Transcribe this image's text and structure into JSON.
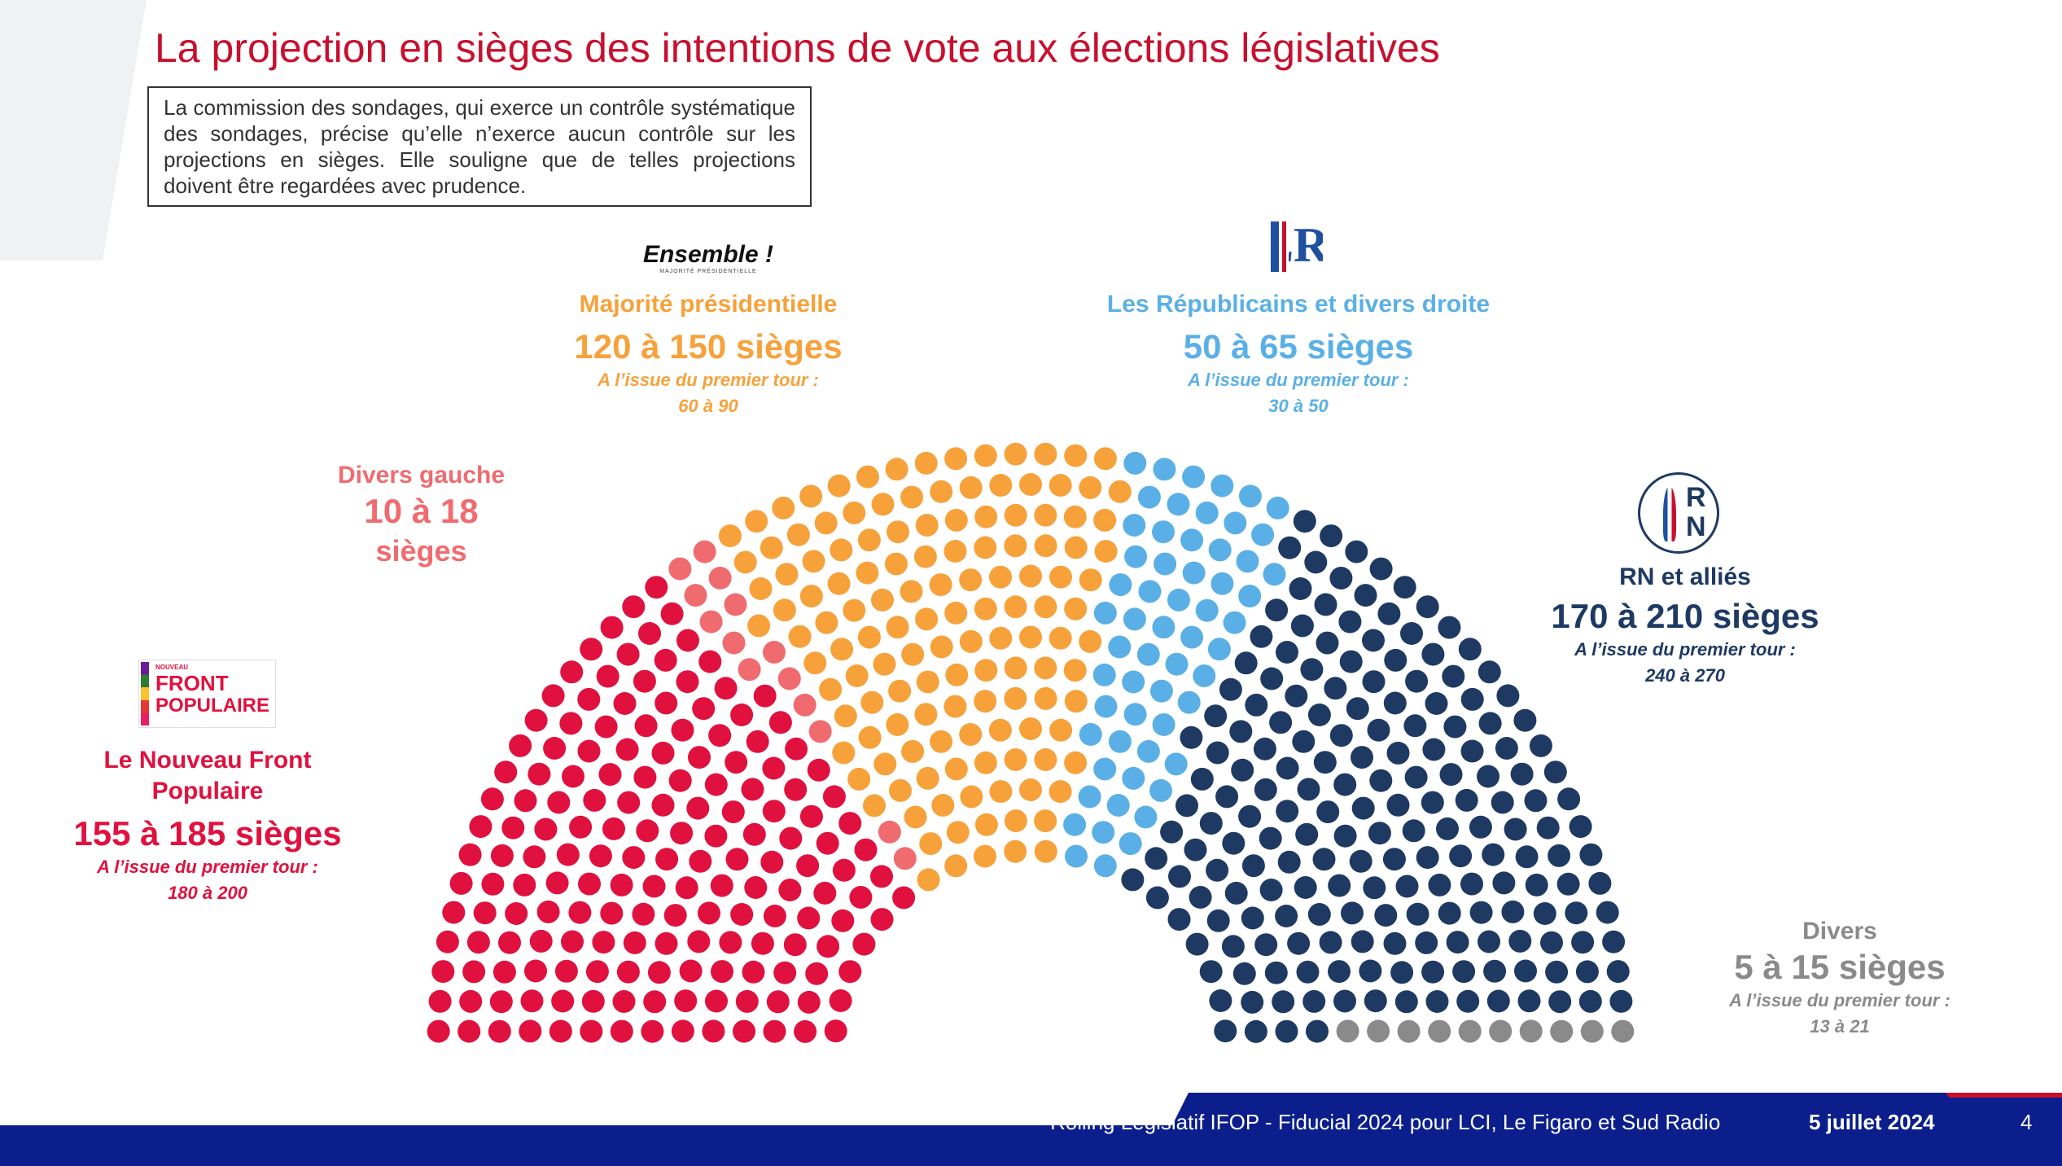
{
  "title": "La projection en sièges des intentions de vote aux élections législatives",
  "disclaimer": "La commission des sondages, qui exerce un contrôle systématique des sondages, précise qu’elle n’exerce aucun contrôle sur les projections en sièges. Elle souligne que de telles projections doivent être regardées avec prudence.",
  "colors": {
    "nfp": "#e0113e",
    "divers_gauche": "#f06b6f",
    "ensemble": "#f7a13b",
    "lr": "#5ab0e6",
    "rn": "#1e3a63",
    "divers": "#8a8a8a",
    "title_red": "#c8102e",
    "footer_blue": "#0b1e8c"
  },
  "logos": {
    "ensemble_text": "Ensemble !",
    "ensemble_sub": "MAJORITÉ PRÉSIDENTIELLE",
    "lr_text": "LR",
    "rn_text": "RN",
    "nfp_small": "NOUVEAU",
    "nfp_line1": "FRONT",
    "nfp_line2": "POPULAIRE"
  },
  "chart_data": {
    "type": "hemicycle",
    "groups": [
      {
        "name": "Le Nouveau Front Populaire",
        "range": "155 à 185 sièges",
        "first_round_label": "A l’issue du premier tour :",
        "first_round": "180 à 200",
        "seats": 170,
        "color": "#e0113e"
      },
      {
        "name": "Divers gauche",
        "range": "10 à 18 sièges",
        "seats": 14,
        "color": "#f06b6f"
      },
      {
        "name": "Majorité présidentielle",
        "range": "120 à 150 sièges",
        "first_round_label": "A l’issue du premier tour :",
        "first_round": "60 à 90",
        "seats": 135,
        "color": "#f7a13b"
      },
      {
        "name": "Les Républicains et divers droite",
        "range": "50 à 65 sièges",
        "first_round_label": "A l’issue du premier tour :",
        "first_round": "30 à 50",
        "seats": 58,
        "color": "#5ab0e6"
      },
      {
        "name": "RN et alliés",
        "range": "170 à 210 sièges",
        "first_round_label": "A l’issue du premier tour :",
        "first_round": "240 à 270",
        "seats": 190,
        "color": "#1e3a63"
      },
      {
        "name": "Divers",
        "range": "5 à 15 sièges",
        "first_round_label": "A l’issue du premier tour :",
        "first_round": "13 à 21",
        "seats": 10,
        "color": "#8a8a8a"
      }
    ]
  },
  "labels": {
    "nfp": {
      "name1": "Le Nouveau Front",
      "name2": "Populaire",
      "seats": "155 à 185 sièges",
      "first_label": "A l’issue du premier tour :",
      "first": "180 à 200"
    },
    "dg": {
      "name": "Divers gauche",
      "seats1": "10 à 18",
      "seats2": "sièges"
    },
    "ens": {
      "name": "Majorité présidentielle",
      "seats": "120 à 150 sièges",
      "first_label": "A l’issue du premier tour :",
      "first": "60 à 90"
    },
    "lr": {
      "name": "Les Républicains et divers droite",
      "seats": "50 à 65 sièges",
      "first_label": "A l’issue du premier tour :",
      "first": "30 à 50"
    },
    "rn": {
      "name": "RN et alliés",
      "seats": "170 à 210 sièges",
      "first_label": "A l’issue du premier tour :",
      "first": "240 à 270"
    },
    "div": {
      "name": "Divers",
      "seats": "5 à 15 sièges",
      "first_label": "A l’issue du premier tour :",
      "first": "13 à 21"
    }
  },
  "footer": {
    "source": "Rolling Législatif IFOP - Fiducial 2024 pour LCI, Le Figaro et Sud Radio",
    "date": "5 juillet 2024",
    "page": "4"
  }
}
